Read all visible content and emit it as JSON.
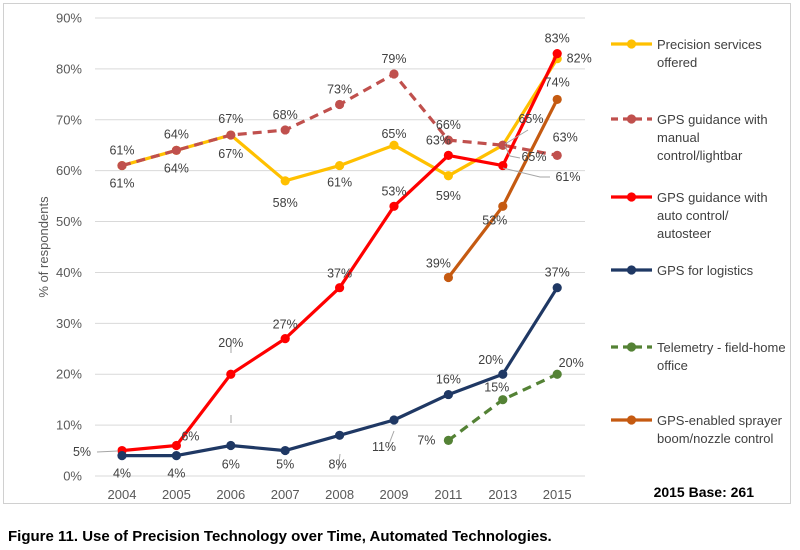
{
  "chart_data": {
    "type": "line",
    "title": "",
    "xlabel": "",
    "ylabel": "% of respondents",
    "ylim": [
      0,
      90
    ],
    "ytick_step": 10,
    "yticks": [
      "0%",
      "10%",
      "20%",
      "30%",
      "40%",
      "50%",
      "60%",
      "70%",
      "80%",
      "90%"
    ],
    "grid": true,
    "legend_placement": "right",
    "categories": [
      "2004",
      "2005",
      "2006",
      "2007",
      "2008",
      "2009",
      "2011",
      "2013",
      "2015"
    ],
    "series": [
      {
        "name": "Precision services offered",
        "color": "#FFC000",
        "dashed": false,
        "values": [
          61,
          64,
          67,
          58,
          61,
          65,
          59,
          65,
          82
        ]
      },
      {
        "name": "GPS guidance with manual control/lightbar",
        "color": "#C0504D",
        "dashed": true,
        "values": [
          61,
          64,
          67,
          68,
          73,
          79,
          66,
          65,
          63
        ]
      },
      {
        "name": "GPS guidance with auto control/ autosteer",
        "color": "#FF0000",
        "dashed": false,
        "values": [
          5,
          6,
          20,
          27,
          37,
          53,
          63,
          61,
          83
        ]
      },
      {
        "name": "GPS for logistics",
        "color": "#1F3864",
        "dashed": false,
        "values": [
          4,
          4,
          6,
          5,
          8,
          11,
          16,
          20,
          37
        ]
      },
      {
        "name": "Telemetry - field-home office",
        "color": "#548235",
        "dashed": true,
        "values": [
          null,
          null,
          null,
          null,
          null,
          null,
          7,
          15,
          20
        ]
      },
      {
        "name": "GPS-enabled sprayer boom/nozzle control",
        "color": "#C55A11",
        "dashed": false,
        "values": [
          null,
          null,
          null,
          null,
          null,
          null,
          39,
          53,
          74
        ]
      }
    ],
    "legend": [
      [
        "Precision services",
        "offered"
      ],
      [
        "GPS guidance with",
        "manual",
        "control/lightbar"
      ],
      [
        "GPS guidance with",
        "auto control/",
        "autosteer"
      ],
      [
        "GPS for logistics"
      ],
      [
        "Telemetry - field-home",
        "office"
      ],
      [
        "GPS-enabled sprayer",
        "boom/nozzle control"
      ]
    ],
    "annotation": "2015 Base: 261"
  },
  "caption": "Figure 11. Use of Precision Technology over Time, Automated Technologies."
}
